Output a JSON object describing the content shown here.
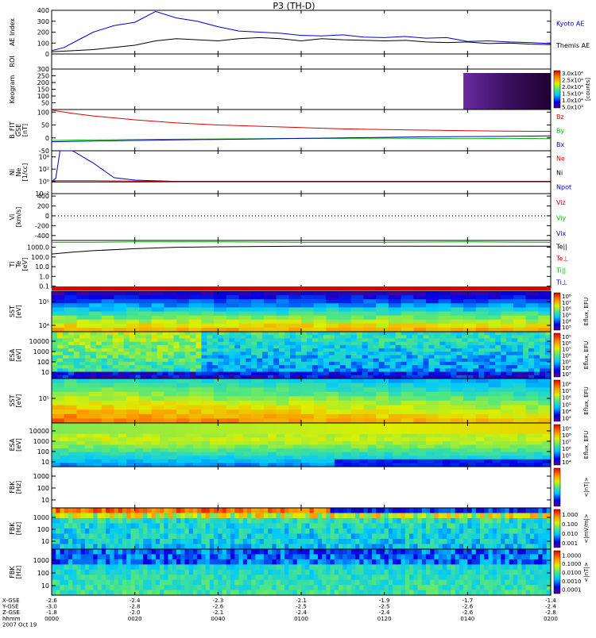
{
  "title": "P3 (TH-D)",
  "colors": {
    "kyoto": "#0000dd",
    "themis": "#000000",
    "red": "#dd0000",
    "green": "#00bb00",
    "blue": "#0000cc"
  },
  "chart_data": {
    "type": "line",
    "time_ticks": [
      "0000",
      "0020",
      "0040",
      "0100",
      "0120",
      "0140",
      "0200"
    ],
    "panels": [
      {
        "id": "ae",
        "ylabel": "AE Index",
        "yticks": [
          "0",
          "100",
          "200",
          "300",
          "400"
        ],
        "ylim": [
          0,
          400
        ],
        "legend": [
          {
            "label": "Kyoto AE",
            "color": "#0000dd"
          },
          {
            "label": "Themis AE",
            "color": "#000000"
          }
        ],
        "series": [
          {
            "name": "Kyoto AE",
            "color": "#0000dd",
            "x": [
              0,
              3,
              6,
              10,
              15,
              20,
              25,
              30,
              35,
              40,
              45,
              50,
              55,
              60,
              65,
              70,
              75,
              80,
              85,
              90,
              95,
              100,
              105,
              110,
              115,
              120
            ],
            "y": [
              30,
              60,
              120,
              200,
              260,
              290,
              390,
              330,
              300,
              250,
              210,
              200,
              190,
              170,
              165,
              175,
              155,
              150,
              160,
              145,
              150,
              115,
              120,
              110,
              105,
              95
            ]
          },
          {
            "name": "Themis AE",
            "color": "#000000",
            "x": [
              0,
              5,
              10,
              15,
              20,
              25,
              30,
              35,
              40,
              45,
              50,
              55,
              60,
              65,
              70,
              75,
              80,
              85,
              90,
              95,
              100,
              105,
              110,
              115,
              120
            ],
            "y": [
              20,
              30,
              40,
              60,
              80,
              120,
              140,
              130,
              120,
              140,
              150,
              140,
              120,
              140,
              130,
              125,
              120,
              125,
              110,
              105,
              110,
              95,
              100,
              90,
              85
            ]
          }
        ]
      },
      {
        "id": "roi",
        "ylabel": "ROI",
        "yticks": []
      },
      {
        "id": "keogram",
        "ylabel": "Keogram",
        "yticks": [
          "50",
          "100",
          "150",
          "200",
          "250",
          "300"
        ],
        "ylim": [
          0,
          300
        ],
        "colorbar": {
          "labels": [
            "3.0x10⁴",
            "2.5x10⁴",
            "2.0x10⁴",
            "1.5x10⁴",
            "1.0x10⁴",
            "5.0x10³"
          ],
          "title": "[counts]"
        }
      },
      {
        "id": "bfield",
        "ylabel": "B_FIT",
        "ylabel2": "GSE",
        "units": "[nT]",
        "yticks": [
          "-50",
          "0",
          "50",
          "100"
        ],
        "ylim": [
          -50,
          110
        ],
        "legend": [
          {
            "label": "Bz",
            "color": "#dd0000"
          },
          {
            "label": "By",
            "color": "#00bb00"
          },
          {
            "label": "Bx",
            "color": "#0000cc"
          }
        ],
        "series": [
          {
            "name": "Bz",
            "color": "#dd0000",
            "x": [
              0,
              5,
              10,
              20,
              30,
              40,
              50,
              60,
              70,
              80,
              90,
              100,
              110,
              120
            ],
            "y": [
              108,
              95,
              85,
              70,
              58,
              50,
              45,
              40,
              35,
              32,
              30,
              28,
              26,
              25
            ]
          },
          {
            "name": "By",
            "color": "#00bb00",
            "x": [
              0,
              10,
              20,
              30,
              40,
              50,
              60,
              70,
              80,
              90,
              100,
              110,
              120
            ],
            "y": [
              -10,
              -8,
              -6,
              -5,
              -4,
              -3,
              -2,
              -2,
              -1,
              -2,
              -3,
              -2,
              -3
            ]
          },
          {
            "name": "Bx",
            "color": "#0000cc",
            "x": [
              0,
              10,
              20,
              30,
              40,
              50,
              60,
              70,
              80,
              90,
              100,
              110,
              120
            ],
            "y": [
              -15,
              -12,
              -10,
              -8,
              -6,
              -4,
              -2,
              0,
              2,
              4,
              5,
              6,
              8
            ]
          }
        ]
      },
      {
        "id": "density",
        "ylabel": "Ni",
        "ylabel2": "Ne",
        "ylabel3": "Npot",
        "units": "[1/cc]",
        "yticks": [
          "10⁻²",
          "10⁰",
          "10²",
          "10⁴"
        ],
        "ylim": [
          -2,
          5
        ],
        "legend": [
          {
            "label": "Ne",
            "color": "#dd0000"
          },
          {
            "label": "Ni",
            "color": "#000000"
          },
          {
            "label": "Npot",
            "color": "#0000cc"
          }
        ],
        "series": [
          {
            "name": "Npot",
            "color": "#0000cc",
            "x": [
              0,
              1,
              2,
              3,
              4,
              5,
              10,
              15,
              20,
              30,
              60,
              120
            ],
            "y": [
              0,
              0.5,
              5,
              5,
              5,
              5,
              3,
              0.6,
              0.2,
              0,
              0,
              0
            ]
          },
          {
            "name": "Ne",
            "color": "#dd0000",
            "x": [
              0,
              10,
              20,
              30,
              60,
              90,
              120
            ],
            "y": [
              0.1,
              0.1,
              0.05,
              0,
              0,
              0,
              0
            ]
          },
          {
            "name": "Ni",
            "color": "#000000",
            "x": [
              0,
              10,
              20,
              30,
              60,
              90,
              120
            ],
            "y": [
              -0.1,
              -0.1,
              -0.1,
              -0.05,
              -0.05,
              -0.05,
              -0.05
            ]
          }
        ]
      },
      {
        "id": "velocity",
        "ylabel": "Vi",
        "units": "[km/s]",
        "yticks": [
          "-400",
          "-200",
          "0",
          "200",
          "400"
        ],
        "ylim": [
          -500,
          450
        ],
        "legend": [
          {
            "label": "Viz",
            "color": "#dd0000"
          },
          {
            "label": "Viy",
            "color": "#00bb00"
          },
          {
            "label": "Vix",
            "color": "#0000cc"
          }
        ]
      },
      {
        "id": "temp",
        "ylabel": "Ti",
        "ylabel2": "Te",
        "units": "[eV]",
        "yticks": [
          "0.1",
          "1.0",
          "10.0",
          "100.0",
          "1000.0"
        ],
        "ylim": [
          -1.2,
          3.7
        ],
        "legend": [
          {
            "label": "Te||",
            "color": "#000000"
          },
          {
            "label": "Te⊥",
            "color": "#dd0000"
          },
          {
            "label": "Ti||",
            "color": "#00bb00"
          },
          {
            "label": "Ti⊥",
            "color": "#0000cc"
          }
        ],
        "series": [
          {
            "name": "Ti||",
            "color": "#00bb00",
            "x": [
              0,
              10,
              20,
              40,
              60,
              80,
              100,
              120
            ],
            "y": [
              3.5,
              3.5,
              3.55,
              3.55,
              3.5,
              3.5,
              3.55,
              3.5
            ]
          },
          {
            "name": "Te||",
            "color": "#000000",
            "x": [
              0,
              5,
              10,
              20,
              30,
              40,
              60,
              80,
              100,
              120
            ],
            "y": [
              2.3,
              2.5,
              2.65,
              2.85,
              3.0,
              3.05,
              3.1,
              3.1,
              3.1,
              3.1
            ]
          }
        ]
      },
      {
        "id": "sst_ion",
        "ylabel": "SST",
        "units": "[eV]",
        "yticks": [
          "10⁴",
          "10⁵"
        ],
        "cbar_ticks": [
          "10⁸",
          "10⁷",
          "10⁶",
          "10⁵",
          "10⁴",
          "10³"
        ],
        "cbar_title": "Eflux, EFU"
      },
      {
        "id": "esa_ion",
        "ylabel": "ESA",
        "units": "[eV]",
        "yticks": [
          "10",
          "100",
          "1000",
          "10000"
        ],
        "cbar_ticks": [
          "10⁹",
          "10⁸",
          "10⁷",
          "10⁶",
          "10⁵",
          "10⁴",
          "10³"
        ],
        "cbar_title": "Eflux, EFU"
      },
      {
        "id": "sst_elec",
        "ylabel": "SST",
        "units": "[eV]",
        "yticks": [
          "10⁵"
        ],
        "cbar_ticks": [
          "10⁸",
          "10⁷",
          "10⁶",
          "10⁵",
          "10⁴",
          "10³"
        ],
        "cbar_title": "Eflux, EFU"
      },
      {
        "id": "esa_elec",
        "ylabel": "ESA",
        "units": "[eV]",
        "yticks": [
          "10",
          "100",
          "1000",
          "10000"
        ],
        "cbar_ticks": [
          "10⁹",
          "10⁸",
          "10⁷",
          "10⁶",
          "10⁵",
          "10⁴"
        ],
        "cbar_title": "Eflux, EFU"
      },
      {
        "id": "fbk_scm",
        "ylabel": "FBK",
        "units": "[Hz]",
        "yticks": [
          "10",
          "100",
          "1000"
        ],
        "cbar_title": "<|nT|>"
      },
      {
        "id": "fbk_efi",
        "ylabel": "FBK",
        "units": "[Hz]",
        "yticks": [
          "10",
          "100",
          "1000"
        ],
        "cbar_ticks": [
          "1.000",
          "0.100",
          "0.010",
          "0.001"
        ],
        "cbar_title": "<|mV/m|>"
      },
      {
        "id": "fbk_scm2",
        "ylabel": "FBK",
        "units": "[Hz]",
        "yticks": [
          "10",
          "100",
          "1000"
        ],
        "cbar_ticks": [
          "1.0000",
          "0.1000",
          "0.0100",
          "0.0010",
          "0.0001"
        ],
        "cbar_title": "<|nT|>"
      }
    ]
  },
  "ephem": {
    "row_labels": [
      "X-GSE",
      "Y-GSE",
      "Z-GSE",
      "hhmm",
      "2007 Oct 19"
    ],
    "columns": [
      [
        "-2.6",
        "-3.0",
        "-1.8",
        "0000"
      ],
      [
        "-2.4",
        "-2.8",
        "-2.0",
        "0020"
      ],
      [
        "-2.3",
        "-2.6",
        "-2.1",
        "0040"
      ],
      [
        "-2.1",
        "-2.5",
        "-2.4",
        "0100"
      ],
      [
        "-1.9",
        "-2.5",
        "-2.4",
        "0120"
      ],
      [
        "-1.7",
        "-2.6",
        "-2.6",
        "0140"
      ],
      [
        "-1.4",
        "-2.4",
        "-2.8",
        "0200"
      ]
    ]
  }
}
